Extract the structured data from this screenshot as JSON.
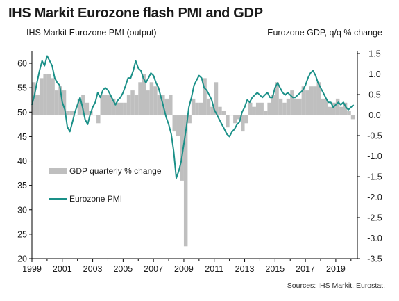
{
  "title": "IHS Markit Eurozone flash PMI and GDP",
  "source": "Sources: IHS Markit, Eurostat.",
  "colors": {
    "pmi": "#1a9088",
    "gdp": "#bfbfbf",
    "axis": "#000000"
  },
  "chart_data": {
    "type": "bar+line",
    "title": "IHS Markit Eurozone flash PMI and GDP",
    "left_axis": {
      "label": "IHS Markit Eurozone PMI (output)",
      "range": [
        20,
        62
      ],
      "ticks": [
        20,
        25,
        30,
        35,
        40,
        45,
        50,
        55,
        60
      ],
      "tick_labels": [
        "20",
        "25",
        "30",
        "35",
        "40",
        "45",
        "50",
        "55",
        "60"
      ]
    },
    "right_axis": {
      "label": "Eurozone GDP, q/q % change",
      "range": [
        -3.5,
        1.5
      ],
      "ticks": [
        -3.5,
        -3.0,
        -2.5,
        -2.0,
        -1.5,
        -1.0,
        -0.5,
        0.0,
        0.5,
        1.0,
        1.5
      ],
      "tick_labels": [
        "-3.5",
        "-3.0",
        "-2.5",
        "-2.0",
        "-1.5",
        "-1.0",
        "-0.5",
        "0.0",
        "0.5",
        "1.0",
        "1.5"
      ]
    },
    "x_axis": {
      "range": [
        1999,
        2020.42
      ],
      "ticks": [
        1999,
        2001,
        2003,
        2005,
        2007,
        2009,
        2011,
        2013,
        2015,
        2017,
        2019
      ],
      "tick_labels": [
        "1999",
        "2001",
        "2003",
        "2005",
        "2007",
        "2009",
        "2011",
        "2013",
        "2015",
        "2017",
        "2019"
      ]
    },
    "legend": {
      "placement": "left-lower"
    },
    "series": [
      {
        "name": "GDP quarterly % change",
        "type": "bar",
        "axis": "right",
        "x": [
          1999.0,
          1999.25,
          1999.5,
          1999.75,
          2000.0,
          2000.25,
          2000.5,
          2000.75,
          2001.0,
          2001.25,
          2001.5,
          2001.75,
          2002.0,
          2002.25,
          2002.5,
          2002.75,
          2003.0,
          2003.25,
          2003.5,
          2003.75,
          2004.0,
          2004.25,
          2004.5,
          2004.75,
          2005.0,
          2005.25,
          2005.5,
          2005.75,
          2006.0,
          2006.25,
          2006.5,
          2006.75,
          2007.0,
          2007.25,
          2007.5,
          2007.75,
          2008.0,
          2008.25,
          2008.5,
          2008.75,
          2009.0,
          2009.25,
          2009.5,
          2009.75,
          2010.0,
          2010.25,
          2010.5,
          2010.75,
          2011.0,
          2011.25,
          2011.5,
          2011.75,
          2012.0,
          2012.25,
          2012.5,
          2012.75,
          2013.0,
          2013.25,
          2013.5,
          2013.75,
          2014.0,
          2014.25,
          2014.5,
          2014.75,
          2015.0,
          2015.25,
          2015.5,
          2015.75,
          2016.0,
          2016.25,
          2016.5,
          2016.75,
          2017.0,
          2017.25,
          2017.5,
          2017.75,
          2018.0,
          2018.25,
          2018.5,
          2018.75,
          2019.0,
          2019.25,
          2019.5,
          2019.75,
          2020.0
        ],
        "values": [
          0.8,
          0.5,
          0.9,
          1.0,
          1.0,
          0.9,
          0.6,
          0.7,
          0.6,
          0.1,
          0.1,
          0.0,
          0.4,
          0.5,
          0.3,
          0.1,
          0.0,
          -0.2,
          0.5,
          0.5,
          0.5,
          0.4,
          0.3,
          0.3,
          0.3,
          0.5,
          0.6,
          0.5,
          0.8,
          1.0,
          0.6,
          0.8,
          0.7,
          0.5,
          0.5,
          0.4,
          0.5,
          -0.4,
          -0.5,
          -1.6,
          -3.2,
          -0.2,
          0.4,
          0.3,
          0.3,
          0.9,
          0.4,
          0.2,
          0.8,
          0.2,
          0.1,
          -0.3,
          0.0,
          -0.2,
          -0.1,
          -0.4,
          -0.2,
          0.3,
          0.2,
          0.3,
          0.3,
          0.1,
          0.3,
          0.5,
          0.8,
          0.4,
          0.3,
          0.4,
          0.6,
          0.4,
          0.4,
          0.7,
          0.6,
          0.7,
          0.7,
          0.8,
          0.4,
          0.4,
          0.2,
          0.3,
          0.4,
          0.2,
          0.3,
          0.1,
          -0.1
        ]
      },
      {
        "name": "Eurozone PMI",
        "type": "line",
        "axis": "left",
        "x": [
          1999.0,
          1999.17,
          1999.33,
          1999.5,
          1999.67,
          1999.83,
          2000.0,
          2000.17,
          2000.33,
          2000.5,
          2000.67,
          2000.83,
          2001.0,
          2001.17,
          2001.33,
          2001.5,
          2001.67,
          2001.83,
          2002.0,
          2002.17,
          2002.33,
          2002.5,
          2002.67,
          2002.83,
          2003.0,
          2003.17,
          2003.33,
          2003.5,
          2003.67,
          2003.83,
          2004.0,
          2004.17,
          2004.33,
          2004.5,
          2004.67,
          2004.83,
          2005.0,
          2005.17,
          2005.33,
          2005.5,
          2005.67,
          2005.83,
          2006.0,
          2006.17,
          2006.33,
          2006.5,
          2006.67,
          2006.83,
          2007.0,
          2007.17,
          2007.33,
          2007.5,
          2007.67,
          2007.83,
          2008.0,
          2008.17,
          2008.33,
          2008.5,
          2008.67,
          2008.83,
          2009.0,
          2009.17,
          2009.33,
          2009.5,
          2009.67,
          2009.83,
          2010.0,
          2010.17,
          2010.33,
          2010.5,
          2010.67,
          2010.83,
          2011.0,
          2011.17,
          2011.33,
          2011.5,
          2011.67,
          2011.83,
          2012.0,
          2012.17,
          2012.33,
          2012.5,
          2012.67,
          2012.83,
          2013.0,
          2013.17,
          2013.33,
          2013.5,
          2013.67,
          2013.83,
          2014.0,
          2014.17,
          2014.33,
          2014.5,
          2014.67,
          2014.83,
          2015.0,
          2015.17,
          2015.33,
          2015.5,
          2015.67,
          2015.83,
          2016.0,
          2016.17,
          2016.33,
          2016.5,
          2016.67,
          2016.83,
          2017.0,
          2017.17,
          2017.33,
          2017.5,
          2017.67,
          2017.83,
          2018.0,
          2018.17,
          2018.33,
          2018.5,
          2018.67,
          2018.83,
          2019.0,
          2019.17,
          2019.33,
          2019.5,
          2019.67,
          2019.83,
          2020.0,
          2020.17
        ],
        "values": [
          51.5,
          53.5,
          56.0,
          58.5,
          60.5,
          59.5,
          61.5,
          60.5,
          59.5,
          57.0,
          56.0,
          55.5,
          52.0,
          50.5,
          47.0,
          46.0,
          48.0,
          50.0,
          51.5,
          53.0,
          51.0,
          48.5,
          47.5,
          49.5,
          51.0,
          52.0,
          54.0,
          53.0,
          54.5,
          55.0,
          54.5,
          53.5,
          52.5,
          51.5,
          52.5,
          53.0,
          54.0,
          55.5,
          57.0,
          57.0,
          58.5,
          60.5,
          59.0,
          58.5,
          57.0,
          56.0,
          57.0,
          58.0,
          57.5,
          56.0,
          55.0,
          53.0,
          51.0,
          49.0,
          47.5,
          45.5,
          42.0,
          36.5,
          38.0,
          40.0,
          43.5,
          47.0,
          51.0,
          53.0,
          55.5,
          56.5,
          57.5,
          57.0,
          55.0,
          54.5,
          53.5,
          52.5,
          50.5,
          49.5,
          48.5,
          47.5,
          46.5,
          45.5,
          45.0,
          46.0,
          46.5,
          47.5,
          48.0,
          50.0,
          51.0,
          52.5,
          52.0,
          53.0,
          53.5,
          54.0,
          53.5,
          53.0,
          53.5,
          54.0,
          53.0,
          53.0,
          55.0,
          56.0,
          55.0,
          54.0,
          53.5,
          54.0,
          53.5,
          53.0,
          53.0,
          53.5,
          54.0,
          54.5,
          55.5,
          57.0,
          58.0,
          58.5,
          57.5,
          56.0,
          55.0,
          54.0,
          53.0,
          52.0,
          52.0,
          51.0,
          51.5,
          52.0,
          51.5,
          52.0,
          51.0,
          50.5,
          51.0,
          51.5
        ]
      }
    ]
  }
}
